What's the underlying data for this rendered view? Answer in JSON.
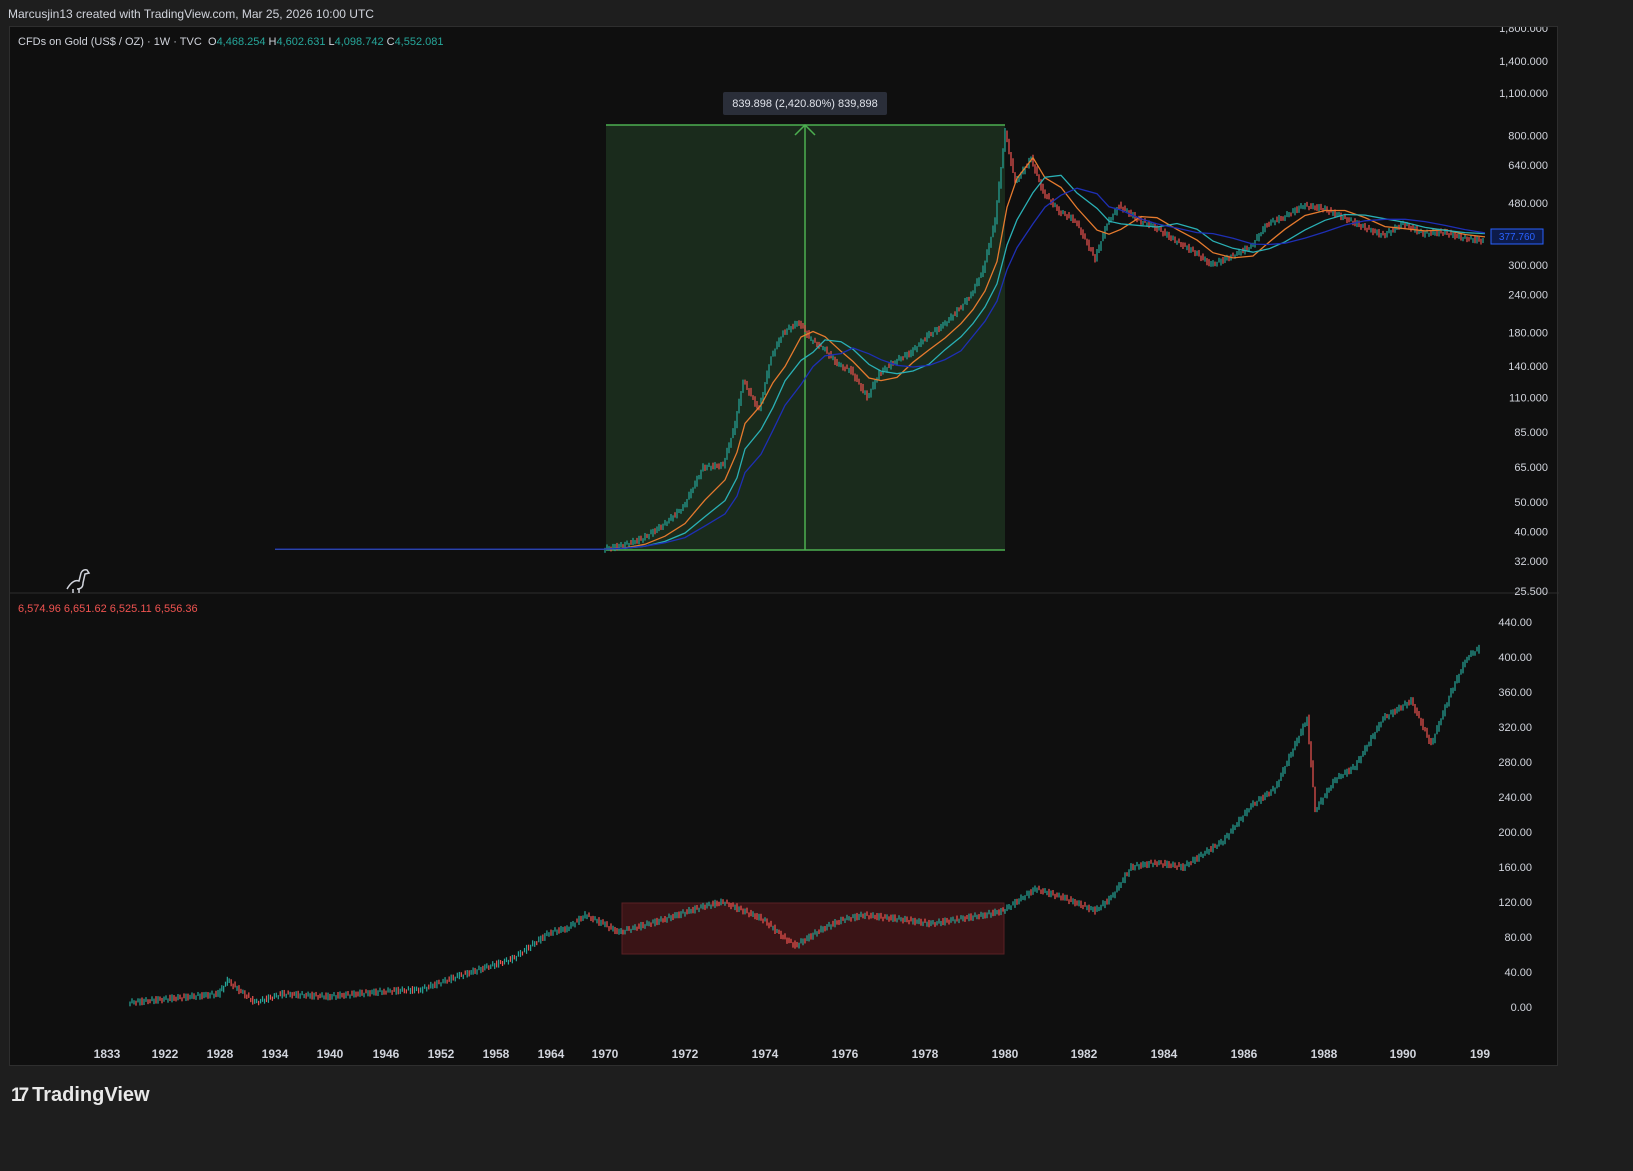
{
  "credit": "Marcusjin13 created with TradingView.com, Mar 25, 2026 10:00 UTC",
  "brand": "TradingView",
  "colors": {
    "background": "#0f0f0f",
    "up": "#26a69a",
    "down": "#ef5350",
    "box_green": "#4caf50",
    "box_red": "#8b2e2e"
  },
  "top_pane": {
    "symbol": "CFDs on Gold (US$ / OZ) · 1W · TVC",
    "ohlc": [
      {
        "k": "O",
        "v": "4,468.254"
      },
      {
        "k": "H",
        "v": "4,602.631"
      },
      {
        "k": "L",
        "v": "4,098.742"
      },
      {
        "k": "C",
        "v": "4,552.081"
      }
    ],
    "measure_label": "839.898 (2,420.80%) 839,898",
    "price_badge": "377.760",
    "scale": "log"
  },
  "bottom_pane": {
    "ohlc": [
      "6,574.96",
      "6,651.62",
      "6,525.11",
      "6,556.36"
    ]
  },
  "chart_data": [
    {
      "type": "line",
      "scale": "log",
      "yticks": [
        "1,800.000",
        "1,400.000",
        "1,100.000",
        "800.000",
        "640.000",
        "480.000",
        "300.000",
        "240.000",
        "180.000",
        "140.000",
        "110.000",
        "85.000",
        "65.000",
        "50.000",
        "40.000",
        "32.000",
        "25.500"
      ],
      "ytick_values": [
        1800,
        1400,
        1100,
        800,
        640,
        480,
        300,
        240,
        180,
        140,
        110,
        85,
        65,
        50,
        40,
        32,
        25.5
      ],
      "series": [
        {
          "values": [
            [
              1934,
              35
            ],
            [
              1969,
              35
            ],
            [
              1970.0,
              35
            ],
            [
              1970.5,
              36
            ],
            [
              1971.0,
              38
            ],
            [
              1971.5,
              42
            ],
            [
              1972.0,
              48
            ],
            [
              1972.5,
              65
            ],
            [
              1973.0,
              66
            ],
            [
              1973.3,
              90
            ],
            [
              1973.5,
              125
            ],
            [
              1973.9,
              100
            ],
            [
              1974.2,
              150
            ],
            [
              1974.5,
              180
            ],
            [
              1974.9,
              195
            ],
            [
              1975.2,
              170
            ],
            [
              1975.5,
              160
            ],
            [
              1975.9,
              140
            ],
            [
              1976.2,
              135
            ],
            [
              1976.6,
              110
            ],
            [
              1976.9,
              132
            ],
            [
              1977.3,
              145
            ],
            [
              1977.7,
              155
            ],
            [
              1978.1,
              175
            ],
            [
              1978.5,
              190
            ],
            [
              1978.9,
              215
            ],
            [
              1979.2,
              240
            ],
            [
              1979.5,
              290
            ],
            [
              1979.8,
              420
            ],
            [
              1980.05,
              820
            ],
            [
              1980.3,
              560
            ],
            [
              1980.7,
              670
            ],
            [
              1981.0,
              520
            ],
            [
              1981.4,
              450
            ],
            [
              1981.8,
              420
            ],
            [
              1982.3,
              315
            ],
            [
              1982.6,
              410
            ],
            [
              1982.9,
              470
            ],
            [
              1983.4,
              420
            ],
            [
              1983.8,
              400
            ],
            [
              1984.3,
              360
            ],
            [
              1984.8,
              330
            ],
            [
              1985.2,
              300
            ],
            [
              1985.7,
              320
            ],
            [
              1986.2,
              345
            ],
            [
              1986.6,
              410
            ],
            [
              1987.0,
              430
            ],
            [
              1987.5,
              470
            ],
            [
              1988.0,
              460
            ],
            [
              1988.5,
              430
            ],
            [
              1989.0,
              400
            ],
            [
              1989.5,
              375
            ],
            [
              1990.0,
              410
            ],
            [
              1990.5,
              380
            ],
            [
              1991.0,
              385
            ],
            [
              1991.5,
              368
            ],
            [
              1992.0,
              360
            ]
          ]
        }
      ]
    },
    {
      "type": "line",
      "yticks": [
        "440.00",
        "400.00",
        "360.00",
        "320.00",
        "280.00",
        "240.00",
        "200.00",
        "160.00",
        "120.00",
        "80.00",
        "40.00",
        "0.00"
      ],
      "ytick_values": [
        440,
        400,
        360,
        320,
        280,
        240,
        200,
        160,
        120,
        80,
        40,
        0
      ],
      "series": [
        {
          "values": [
            [
              1918,
              5
            ],
            [
              1928,
              15
            ],
            [
              1929,
              30
            ],
            [
              1932,
              5
            ],
            [
              1935,
              15
            ],
            [
              1940,
              12
            ],
            [
              1946,
              18
            ],
            [
              1950,
              20
            ],
            [
              1954,
              35
            ],
            [
              1957,
              45
            ],
            [
              1960,
              55
            ],
            [
              1964,
              85
            ],
            [
              1966,
              90
            ],
            [
              1968,
              105
            ],
            [
              1970.0,
              95
            ],
            [
              1970.4,
              85
            ],
            [
              1970.6,
              88
            ],
            [
              1971.5,
              100
            ],
            [
              1972.5,
              115
            ],
            [
              1973.0,
              120
            ],
            [
              1973.5,
              110
            ],
            [
              1974.0,
              100
            ],
            [
              1974.5,
              80
            ],
            [
              1974.8,
              70
            ],
            [
              1975.5,
              90
            ],
            [
              1976.0,
              100
            ],
            [
              1976.5,
              105
            ],
            [
              1977.5,
              100
            ],
            [
              1978.2,
              95
            ],
            [
              1978.8,
              100
            ],
            [
              1979.5,
              105
            ],
            [
              1980.0,
              110
            ],
            [
              1980.8,
              135
            ],
            [
              1981.5,
              125
            ],
            [
              1982.3,
              110
            ],
            [
              1982.7,
              125
            ],
            [
              1983.2,
              160
            ],
            [
              1983.8,
              165
            ],
            [
              1984.5,
              160
            ],
            [
              1985.5,
              190
            ],
            [
              1986.2,
              230
            ],
            [
              1986.8,
              250
            ],
            [
              1987.6,
              330
            ],
            [
              1987.8,
              225
            ],
            [
              1988.3,
              260
            ],
            [
              1988.8,
              275
            ],
            [
              1989.5,
              330
            ],
            [
              1990.2,
              350
            ],
            [
              1990.7,
              300
            ],
            [
              1991.2,
              360
            ],
            [
              1991.6,
              400
            ],
            [
              1991.9,
              410
            ]
          ]
        }
      ]
    }
  ],
  "xaxis": {
    "labels": [
      "1833",
      "1922",
      "1928",
      "1934",
      "1940",
      "1946",
      "1952",
      "1958",
      "1964",
      "1970",
      "1972",
      "1974",
      "1976",
      "1978",
      "1980",
      "1982",
      "1984",
      "1986",
      "1988",
      "1990",
      "199"
    ]
  }
}
